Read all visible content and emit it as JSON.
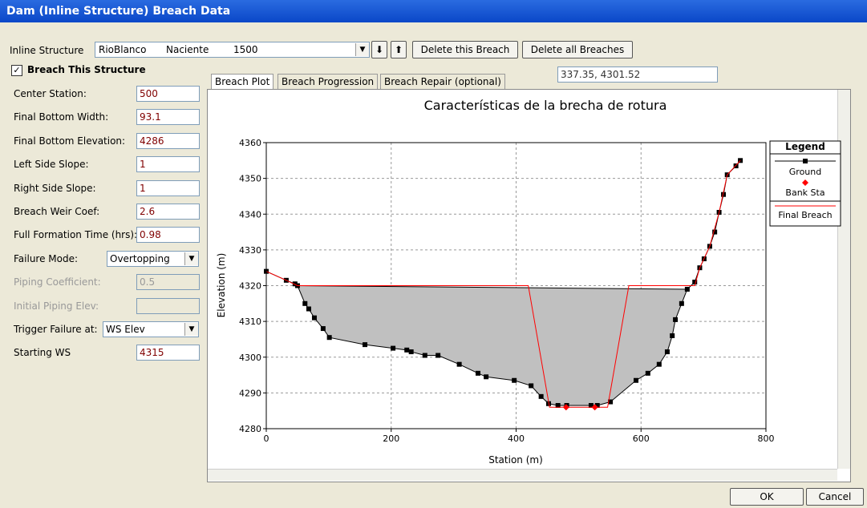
{
  "window": {
    "title": "Dam (Inline Structure) Breach Data"
  },
  "toolbar": {
    "label": "Inline Structure",
    "river": "RioBlanco",
    "reach": "Naciente",
    "station": "1500",
    "buttons": [
      "Delete this Breach",
      "Delete all Breaches"
    ]
  },
  "form": {
    "checkbox": "Breach This Structure",
    "fields": [
      {
        "label": "Center Station:",
        "value": "500"
      },
      {
        "label": "Final Bottom Width:",
        "value": "93.1"
      },
      {
        "label": "Final Bottom Elevation:",
        "value": "4286"
      },
      {
        "label": "Left Side Slope:",
        "value": "1"
      },
      {
        "label": "Right Side Slope:",
        "value": "1"
      },
      {
        "label": "Breach Weir Coef:",
        "value": "2.6"
      },
      {
        "label": "Full Formation Time (hrs):",
        "value": "0.98"
      },
      {
        "label": "Failure Mode:",
        "value": "Overtopping",
        "select": true
      },
      {
        "label": "Piping Coefficient:",
        "value": "0.5",
        "disabled": true
      },
      {
        "label": "Initial Piping Elev:",
        "value": "",
        "disabled": true
      },
      {
        "label": "Trigger Failure at:",
        "value": "WS Elev",
        "select": true
      },
      {
        "label": "Starting WS",
        "value": "4315"
      }
    ]
  },
  "tabs": [
    "Breach Plot",
    "Breach Progression",
    "Breach Repair (optional)"
  ],
  "cursor": "337.35, 4301.52",
  "buttons": [
    "OK",
    "Cancel"
  ],
  "chart_data": {
    "type": "line",
    "title": "Características de la brecha de rotura",
    "x_label": "Station (m)",
    "y_label": "Elevation (m)",
    "xlim": [
      0,
      800
    ],
    "xticks": [
      0,
      200,
      400,
      600,
      800
    ],
    "ylim": [
      4280,
      4360
    ],
    "yticks": [
      4280,
      4290,
      4300,
      4310,
      4320,
      4330,
      4340,
      4350,
      4360
    ],
    "grid": true,
    "legend_title": "Legend",
    "series": [
      {
        "name": "Ground",
        "color": "#000000",
        "line": true,
        "marker": "square",
        "x": [
          0,
          32,
          46,
          50,
          62,
          68,
          77,
          91,
          101,
          158,
          203,
          225,
          232,
          254,
          275,
          309,
          339,
          352,
          397,
          424,
          440,
          452,
          467,
          481,
          520,
          530,
          551,
          592,
          611,
          629,
          642,
          650,
          655,
          665,
          674,
          686,
          694,
          701,
          710,
          718,
          725,
          732,
          738,
          752,
          759
        ],
        "values": [
          4324,
          4321.5,
          4320.5,
          4320,
          4315,
          4313.5,
          4311,
          4308,
          4305.5,
          4303.5,
          4302.5,
          4302,
          4301.5,
          4300.5,
          4300.5,
          4298,
          4295.5,
          4294.5,
          4293.5,
          4292,
          4289,
          4287,
          4286.5,
          4286.5,
          4286.5,
          4286.5,
          4287.5,
          4293.5,
          4295.5,
          4298,
          4301.5,
          4306,
          4310.5,
          4315,
          4319,
          4321,
          4325,
          4327.5,
          4331,
          4335,
          4340.5,
          4345.5,
          4351,
          4353.5,
          4355
        ]
      },
      {
        "name": "Bank Sta",
        "color": "#ff0000",
        "line": false,
        "marker": "diamond",
        "x": [
          480,
          526
        ],
        "values": [
          4286,
          4286
        ]
      },
      {
        "name": "Final Breach",
        "color": "#ff0000",
        "line": true,
        "marker": "none",
        "x": [
          0,
          32,
          50,
          419.5,
          453.5,
          546.5,
          580.5,
          686,
          694,
          710,
          725,
          738,
          759
        ],
        "values": [
          4324,
          4321.5,
          4320,
          4320,
          4286,
          4286,
          4320,
          4320,
          4325,
          4331,
          4340.5,
          4351,
          4355
        ]
      }
    ]
  }
}
